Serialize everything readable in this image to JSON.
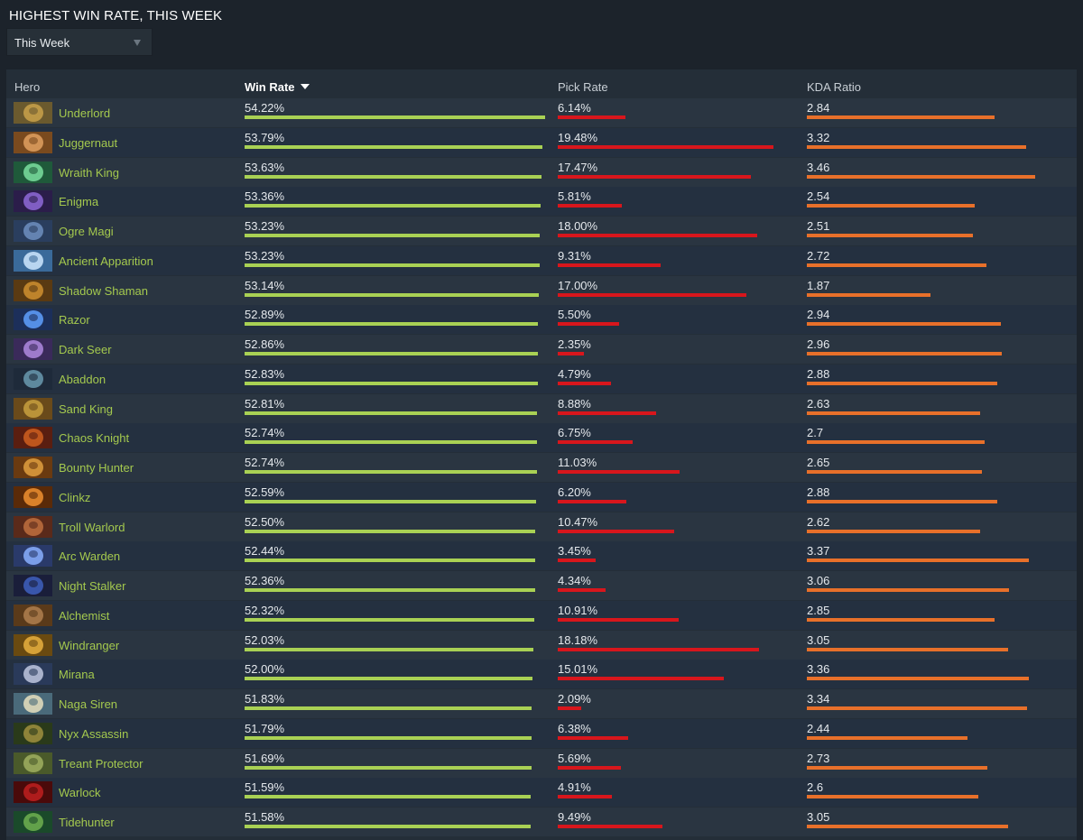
{
  "page": {
    "title": "HIGHEST WIN RATE, THIS WEEK",
    "period_select": {
      "value": "This Week"
    }
  },
  "table": {
    "columns": {
      "hero": "Hero",
      "win_rate": "Win Rate",
      "pick_rate": "Pick Rate",
      "kda": "KDA Ratio"
    },
    "sorted_by": "win_rate",
    "sort_direction": "desc",
    "colors": {
      "hero_name": "#a4c94e",
      "win_bar": "#a9d154",
      "pick_bar": "#d8161c",
      "kda_bar": "#e8702a"
    },
    "rows": [
      {
        "hero": "Underlord",
        "win": "54.22%",
        "pick": "6.14%",
        "kda": "2.84",
        "icon": "underlord-portrait"
      },
      {
        "hero": "Juggernaut",
        "win": "53.79%",
        "pick": "19.48%",
        "kda": "3.32",
        "icon": "juggernaut-portrait"
      },
      {
        "hero": "Wraith King",
        "win": "53.63%",
        "pick": "17.47%",
        "kda": "3.46",
        "icon": "wraith-king-portrait"
      },
      {
        "hero": "Enigma",
        "win": "53.36%",
        "pick": "5.81%",
        "kda": "2.54",
        "icon": "enigma-portrait"
      },
      {
        "hero": "Ogre Magi",
        "win": "53.23%",
        "pick": "18.00%",
        "kda": "2.51",
        "icon": "ogre-magi-portrait"
      },
      {
        "hero": "Ancient Apparition",
        "win": "53.23%",
        "pick": "9.31%",
        "kda": "2.72",
        "icon": "ancient-apparition-portrait"
      },
      {
        "hero": "Shadow Shaman",
        "win": "53.14%",
        "pick": "17.00%",
        "kda": "1.87",
        "icon": "shadow-shaman-portrait"
      },
      {
        "hero": "Razor",
        "win": "52.89%",
        "pick": "5.50%",
        "kda": "2.94",
        "icon": "razor-portrait"
      },
      {
        "hero": "Dark Seer",
        "win": "52.86%",
        "pick": "2.35%",
        "kda": "2.96",
        "icon": "dark-seer-portrait"
      },
      {
        "hero": "Abaddon",
        "win": "52.83%",
        "pick": "4.79%",
        "kda": "2.88",
        "icon": "abaddon-portrait"
      },
      {
        "hero": "Sand King",
        "win": "52.81%",
        "pick": "8.88%",
        "kda": "2.63",
        "icon": "sand-king-portrait"
      },
      {
        "hero": "Chaos Knight",
        "win": "52.74%",
        "pick": "6.75%",
        "kda": "2.7",
        "icon": "chaos-knight-portrait"
      },
      {
        "hero": "Bounty Hunter",
        "win": "52.74%",
        "pick": "11.03%",
        "kda": "2.65",
        "icon": "bounty-hunter-portrait"
      },
      {
        "hero": "Clinkz",
        "win": "52.59%",
        "pick": "6.20%",
        "kda": "2.88",
        "icon": "clinkz-portrait"
      },
      {
        "hero": "Troll Warlord",
        "win": "52.50%",
        "pick": "10.47%",
        "kda": "2.62",
        "icon": "troll-warlord-portrait"
      },
      {
        "hero": "Arc Warden",
        "win": "52.44%",
        "pick": "3.45%",
        "kda": "3.37",
        "icon": "arc-warden-portrait"
      },
      {
        "hero": "Night Stalker",
        "win": "52.36%",
        "pick": "4.34%",
        "kda": "3.06",
        "icon": "night-stalker-portrait"
      },
      {
        "hero": "Alchemist",
        "win": "52.32%",
        "pick": "10.91%",
        "kda": "2.85",
        "icon": "alchemist-portrait"
      },
      {
        "hero": "Windranger",
        "win": "52.03%",
        "pick": "18.18%",
        "kda": "3.05",
        "icon": "windranger-portrait"
      },
      {
        "hero": "Mirana",
        "win": "52.00%",
        "pick": "15.01%",
        "kda": "3.36",
        "icon": "mirana-portrait"
      },
      {
        "hero": "Naga Siren",
        "win": "51.83%",
        "pick": "2.09%",
        "kda": "3.34",
        "icon": "naga-siren-portrait"
      },
      {
        "hero": "Nyx Assassin",
        "win": "51.79%",
        "pick": "6.38%",
        "kda": "2.44",
        "icon": "nyx-assassin-portrait"
      },
      {
        "hero": "Treant Protector",
        "win": "51.69%",
        "pick": "5.69%",
        "kda": "2.73",
        "icon": "treant-protector-portrait"
      },
      {
        "hero": "Warlock",
        "win": "51.59%",
        "pick": "4.91%",
        "kda": "2.6",
        "icon": "warlock-portrait"
      },
      {
        "hero": "Tidehunter",
        "win": "51.58%",
        "pick": "9.49%",
        "kda": "3.05",
        "icon": "tidehunter-portrait"
      }
    ]
  }
}
